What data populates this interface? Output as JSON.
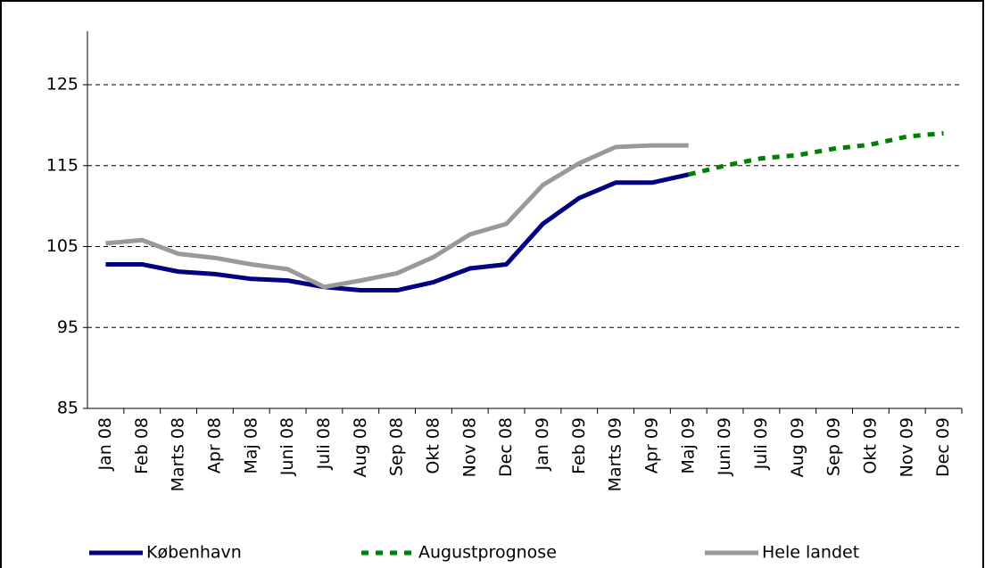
{
  "chart_data": {
    "type": "line",
    "categories": [
      "Jan 08",
      "Feb 08",
      "Marts 08",
      "Apr 08",
      "Maj 08",
      "Juni 08",
      "Juli 08",
      "Aug 08",
      "Sep 08",
      "Okt 08",
      "Nov 08",
      "Dec 08",
      "Jan 09",
      "Feb 09",
      "Marts 09",
      "Apr 09",
      "Maj 09",
      "Juni 09",
      "Juli 09",
      "Aug 09",
      "Sep 09",
      "Okt 09",
      "Nov 09",
      "Dec 09"
    ],
    "series": [
      {
        "name": "København",
        "color": "#000080",
        "dashed": false,
        "values": [
          102.8,
          102.8,
          101.9,
          101.6,
          101.0,
          100.8,
          100.0,
          99.6,
          99.6,
          100.6,
          102.3,
          102.8,
          107.8,
          111.0,
          112.9,
          112.9,
          113.9,
          null,
          null,
          null,
          null,
          null,
          null,
          null
        ]
      },
      {
        "name": "Augustprognose",
        "color": "#008000",
        "dashed": true,
        "values": [
          null,
          null,
          null,
          null,
          null,
          null,
          null,
          null,
          null,
          null,
          null,
          null,
          null,
          null,
          null,
          null,
          113.9,
          115.0,
          115.9,
          116.3,
          117.1,
          117.6,
          118.6,
          119.0
        ]
      },
      {
        "name": "Hele landet",
        "color": "#999999",
        "dashed": false,
        "values": [
          105.4,
          105.8,
          104.1,
          103.6,
          102.8,
          102.2,
          100.0,
          100.8,
          101.7,
          103.7,
          106.5,
          107.8,
          112.6,
          115.3,
          117.3,
          117.5,
          117.5,
          null,
          null,
          null,
          null,
          null,
          null,
          null
        ]
      }
    ],
    "ylim": [
      85,
      125
    ],
    "yticks": [
      85,
      95,
      105,
      115,
      125
    ],
    "grid": true
  }
}
